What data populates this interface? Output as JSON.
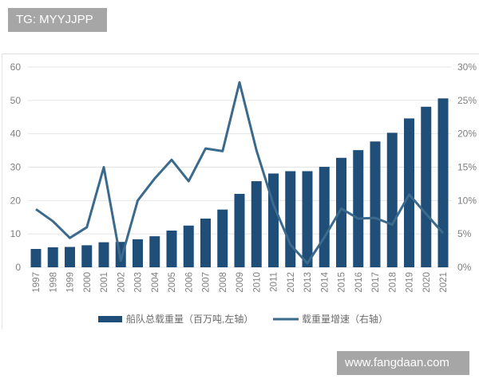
{
  "watermarks": {
    "top": "TG: MYYJJPP",
    "bottom": "www.fangdaan.com"
  },
  "colors": {
    "bar": "#1f4e79",
    "line": "#3b6a8c",
    "grid": "#e4e4e4",
    "axis_text": "#7f7f7f",
    "watermark_bg": "#a6a6a6"
  },
  "chart_data": {
    "type": "bar+line",
    "title": "",
    "categories": [
      "1997",
      "1998",
      "1999",
      "2000",
      "2001",
      "2002",
      "2003",
      "2004",
      "2005",
      "2006",
      "2007",
      "2008",
      "2009",
      "2010",
      "2011",
      "2012",
      "2013",
      "2014",
      "2015",
      "2016",
      "2017",
      "2018",
      "2019",
      "2020",
      "2021"
    ],
    "series": [
      {
        "name": "船队总载重量（百万吨,左轴）",
        "type": "bar",
        "axis": "left",
        "values": [
          5.5,
          6.0,
          6.1,
          6.6,
          7.5,
          7.6,
          8.4,
          9.3,
          11.0,
          12.5,
          14.6,
          17.3,
          22.0,
          25.8,
          28.1,
          28.8,
          28.8,
          30.1,
          32.8,
          35.1,
          37.7,
          40.3,
          44.6,
          48.1,
          50.6
        ]
      },
      {
        "name": "载重量增速（右轴）",
        "type": "line",
        "axis": "right",
        "unit": "%",
        "values": [
          8.7,
          6.9,
          4.4,
          6.0,
          15.0,
          1.0,
          10.0,
          13.3,
          16.1,
          12.9,
          17.8,
          17.4,
          27.7,
          17.5,
          9.4,
          3.4,
          0.6,
          4.5,
          8.8,
          7.3,
          7.4,
          6.4,
          10.9,
          8.0,
          5.1
        ]
      }
    ],
    "left_axis": {
      "ylim": [
        0,
        60
      ],
      "ticks": [
        "0",
        "10",
        "20",
        "30",
        "40",
        "50",
        "60"
      ]
    },
    "right_axis": {
      "ylim": [
        0,
        30
      ],
      "ticks": [
        "0%",
        "5%",
        "10%",
        "15%",
        "20%",
        "25%",
        "30%"
      ]
    },
    "xlabel": "",
    "ylabel": "",
    "grid": true,
    "legend_position": "bottom",
    "legend": [
      "船队总载重量（百万吨,左轴）",
      "载重量增速（右轴）"
    ]
  }
}
